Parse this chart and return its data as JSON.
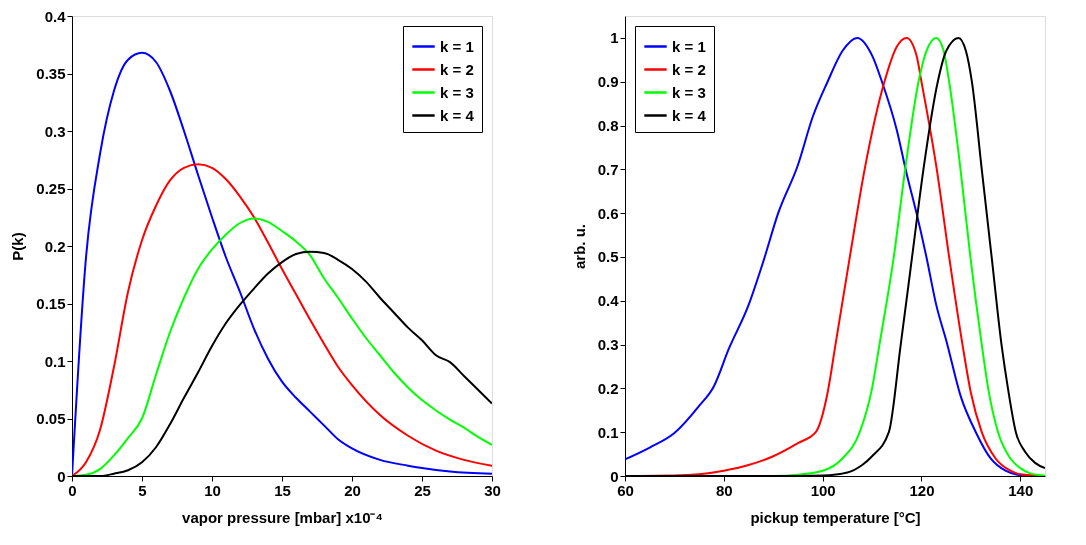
{
  "chart_data": [
    {
      "type": "line",
      "xlabel": "vapor pressure [mbar] x10⁻⁴",
      "ylabel": "P(k)",
      "xlim": [
        0,
        30
      ],
      "ylim": [
        0,
        0.4
      ],
      "xticks": [
        0,
        5,
        10,
        15,
        20,
        25,
        30
      ],
      "yticks": [
        0,
        0.05,
        0.1,
        0.15,
        0.2,
        0.25,
        0.3,
        0.35,
        0.4
      ],
      "grid": false,
      "legend": "top right",
      "line_style": "solid",
      "series": [
        {
          "name": "k = 1",
          "color": "#0000ff",
          "x": [
            0,
            1,
            2,
            3,
            4,
            5,
            6,
            7,
            8,
            9,
            10,
            11,
            12,
            13,
            14,
            15,
            16,
            17,
            18,
            19,
            20,
            22,
            24,
            25,
            27,
            30
          ],
          "values": [
            0,
            0.19,
            0.28,
            0.335,
            0.362,
            0.368,
            0.36,
            0.335,
            0.3,
            0.262,
            0.225,
            0.19,
            0.16,
            0.128,
            0.102,
            0.082,
            0.068,
            0.056,
            0.044,
            0.032,
            0.024,
            0.014,
            0.009,
            0.007,
            0.004,
            0.002
          ]
        },
        {
          "name": "k = 2",
          "color": "#ff0000",
          "x": [
            0,
            1,
            2,
            3,
            4,
            5,
            6,
            7,
            8,
            9,
            10,
            11,
            12,
            13,
            14,
            15,
            16,
            17,
            18,
            19,
            20,
            22,
            24,
            26,
            28,
            30
          ],
          "values": [
            0,
            0.012,
            0.04,
            0.095,
            0.16,
            0.205,
            0.235,
            0.257,
            0.268,
            0.271,
            0.268,
            0.258,
            0.243,
            0.225,
            0.203,
            0.18,
            0.158,
            0.136,
            0.115,
            0.095,
            0.079,
            0.053,
            0.035,
            0.022,
            0.014,
            0.009
          ]
        },
        {
          "name": "k = 3",
          "color": "#00ff00",
          "x": [
            0,
            1,
            2,
            3,
            4,
            5,
            6,
            7,
            8,
            9,
            10,
            11,
            12,
            13,
            14,
            15,
            16,
            17,
            18,
            19,
            20,
            21,
            22,
            23,
            24,
            25,
            26,
            27,
            28,
            29,
            30
          ],
          "values": [
            0,
            0.001,
            0.006,
            0.018,
            0.033,
            0.05,
            0.088,
            0.125,
            0.155,
            0.18,
            0.197,
            0.21,
            0.22,
            0.224,
            0.221,
            0.213,
            0.204,
            0.192,
            0.172,
            0.155,
            0.137,
            0.12,
            0.105,
            0.09,
            0.077,
            0.066,
            0.057,
            0.049,
            0.042,
            0.034,
            0.027
          ]
        },
        {
          "name": "k = 4",
          "color": "#000000",
          "x": [
            0,
            2,
            3,
            4,
            5,
            6,
            7,
            8,
            9,
            10,
            11,
            12,
            13,
            14,
            15,
            16,
            17,
            18,
            19,
            20,
            21,
            22,
            23,
            24,
            25,
            26,
            27,
            28,
            29,
            30
          ],
          "values": [
            0,
            0,
            0.002,
            0.005,
            0.012,
            0.025,
            0.045,
            0.068,
            0.09,
            0.113,
            0.133,
            0.149,
            0.163,
            0.176,
            0.186,
            0.193,
            0.195,
            0.194,
            0.188,
            0.18,
            0.169,
            0.155,
            0.142,
            0.129,
            0.118,
            0.105,
            0.099,
            0.087,
            0.075,
            0.063
          ]
        }
      ]
    },
    {
      "type": "line",
      "xlabel": "pickup temperature [°C]",
      "ylabel": "arb. u.",
      "xlim": [
        60,
        145
      ],
      "ylim": [
        0,
        1.05
      ],
      "xticks": [
        60,
        80,
        100,
        120,
        140
      ],
      "yticks": [
        0,
        0.1,
        0.2,
        0.3,
        0.4,
        0.5,
        0.6,
        0.7,
        0.8,
        0.9,
        1
      ],
      "grid": false,
      "legend": "top left",
      "line_style": "solid",
      "series": [
        {
          "name": "k = 1",
          "color": "#0000ff",
          "x": [
            60,
            65,
            70,
            75,
            78,
            81,
            85,
            88,
            91,
            95,
            98,
            101,
            104,
            107,
            110,
            112,
            115,
            117,
            119,
            121,
            123,
            125,
            128,
            131,
            134,
            137,
            140,
            145
          ],
          "values": [
            0.038,
            0.065,
            0.098,
            0.16,
            0.205,
            0.29,
            0.39,
            0.49,
            0.6,
            0.71,
            0.82,
            0.9,
            0.97,
            1.0,
            0.96,
            0.9,
            0.79,
            0.69,
            0.6,
            0.5,
            0.39,
            0.31,
            0.18,
            0.1,
            0.04,
            0.012,
            0.002,
            0
          ]
        },
        {
          "name": "k = 2",
          "color": "#ff0000",
          "x": [
            60,
            70,
            75,
            80,
            85,
            90,
            95,
            98.6,
            101,
            102.6,
            105.5,
            108.5,
            112.5,
            115,
            117,
            119,
            120,
            123.1,
            125.6,
            128.3,
            130,
            132.2,
            135,
            138,
            140,
            145
          ],
          "values": [
            0,
            0.001,
            0.004,
            0.012,
            0.025,
            0.045,
            0.075,
            0.1,
            0.19,
            0.3,
            0.5,
            0.7,
            0.9,
            0.98,
            1.0,
            0.96,
            0.9,
            0.7,
            0.5,
            0.3,
            0.19,
            0.1,
            0.04,
            0.012,
            0.004,
            0
          ]
        },
        {
          "name": "k = 3",
          "color": "#00ff00",
          "x": [
            60,
            90,
            95,
            100,
            104,
            107.5,
            110,
            111.5,
            114.4,
            116.7,
            119.4,
            121,
            123,
            124.5,
            125.6,
            127.9,
            129.9,
            132.2,
            133.5,
            135.5,
            138,
            140,
            142,
            145
          ],
          "values": [
            0,
            0,
            0.003,
            0.012,
            0.04,
            0.1,
            0.2,
            0.3,
            0.5,
            0.7,
            0.9,
            0.97,
            1.0,
            0.97,
            0.9,
            0.7,
            0.5,
            0.3,
            0.2,
            0.1,
            0.04,
            0.018,
            0.006,
            0.001
          ]
        },
        {
          "name": "k = 4",
          "color": "#000000",
          "x": [
            60,
            95,
            100,
            105,
            108,
            110,
            113.4,
            115.8,
            118.1,
            120.4,
            123.3,
            125,
            127.5,
            129,
            130.2,
            132.2,
            134.2,
            136.2,
            137.5,
            139.1,
            141,
            143,
            145
          ],
          "values": [
            0,
            0,
            0.001,
            0.008,
            0.025,
            0.045,
            0.1,
            0.3,
            0.5,
            0.7,
            0.9,
            0.97,
            1.0,
            0.97,
            0.9,
            0.7,
            0.5,
            0.3,
            0.2,
            0.1,
            0.055,
            0.03,
            0.018
          ]
        }
      ]
    }
  ]
}
